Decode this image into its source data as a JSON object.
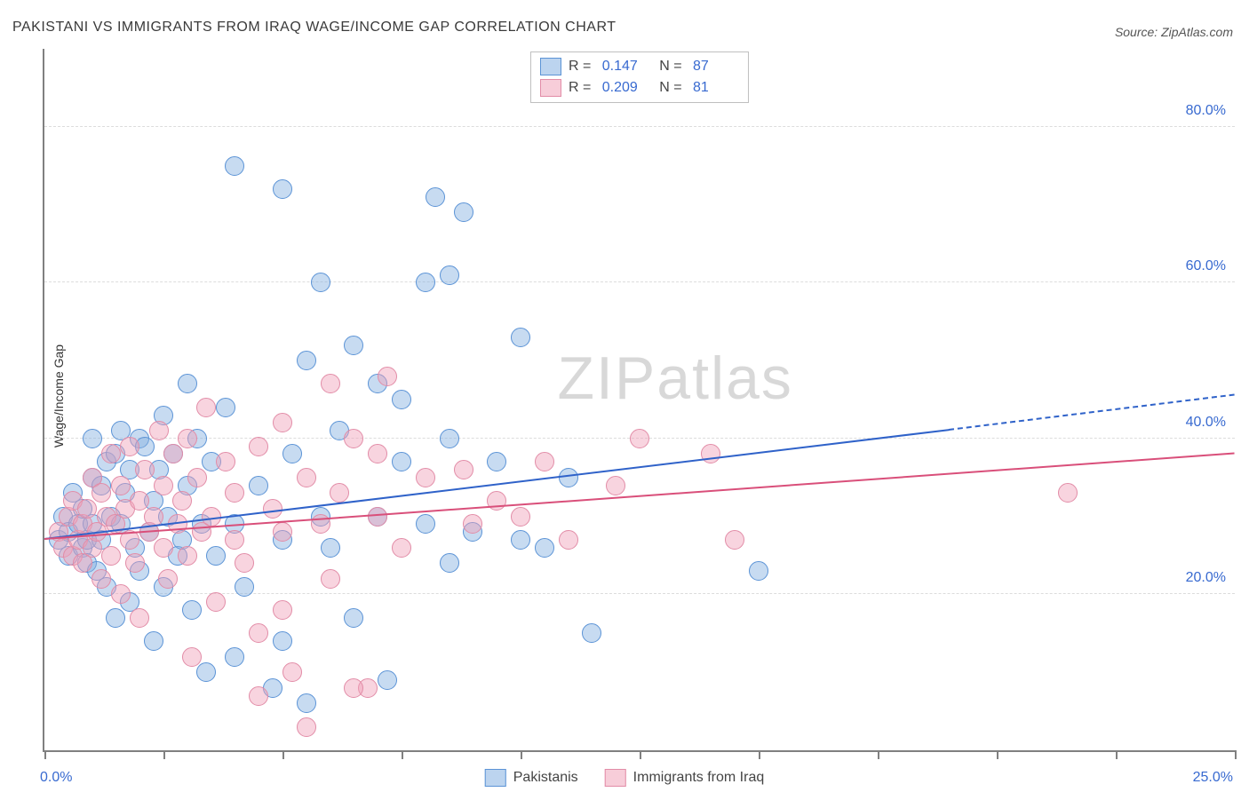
{
  "title": "PAKISTANI VS IMMIGRANTS FROM IRAQ WAGE/INCOME GAP CORRELATION CHART",
  "source": "Source: ZipAtlas.com",
  "ylabel": "Wage/Income Gap",
  "watermark_a": "ZIP",
  "watermark_b": "atlas",
  "chart": {
    "type": "scatter",
    "background_color": "#ffffff",
    "grid_color": "#dcdcdc",
    "axis_color": "#808080",
    "tick_label_color": "#386ad0",
    "xlim": [
      0,
      25
    ],
    "ylim": [
      0,
      90
    ],
    "ytick_values": [
      20,
      40,
      60,
      80
    ],
    "ytick_labels": [
      "20.0%",
      "40.0%",
      "60.0%",
      "80.0%"
    ],
    "xtick_values": [
      0,
      2.5,
      5,
      7.5,
      10,
      12.5,
      15,
      17.5,
      20,
      22.5,
      25
    ],
    "xaxis_left_label": "0.0%",
    "xaxis_right_label": "25.0%",
    "marker_radius": 10,
    "marker_stroke_width": 1.5,
    "series": [
      {
        "name": "Pakistanis",
        "fill_color": "rgba(130, 175, 225, 0.45)",
        "stroke_color": "#5b93d6",
        "swatch_fill": "#bcd4ef",
        "swatch_stroke": "#5b93d6",
        "R": "0.147",
        "N": "87",
        "trend": {
          "x1": 0,
          "y1": 27,
          "x2_solid": 19,
          "y2_solid": 41,
          "x2_dash": 25,
          "y2_dash": 45.5,
          "color": "#2f62c9",
          "width": 2.5
        },
        "points": [
          [
            0.3,
            27
          ],
          [
            0.4,
            30
          ],
          [
            0.5,
            25
          ],
          [
            0.5,
            28
          ],
          [
            0.6,
            33
          ],
          [
            0.7,
            29
          ],
          [
            0.8,
            26
          ],
          [
            0.8,
            31
          ],
          [
            0.9,
            24
          ],
          [
            0.9,
            27
          ],
          [
            1.0,
            35
          ],
          [
            1.0,
            29
          ],
          [
            1.0,
            40
          ],
          [
            1.1,
            23
          ],
          [
            1.2,
            34
          ],
          [
            1.2,
            27
          ],
          [
            1.3,
            37
          ],
          [
            1.3,
            21
          ],
          [
            1.4,
            30
          ],
          [
            1.5,
            38
          ],
          [
            1.5,
            17
          ],
          [
            1.6,
            29
          ],
          [
            1.6,
            41
          ],
          [
            1.7,
            33
          ],
          [
            1.8,
            36
          ],
          [
            1.8,
            19
          ],
          [
            1.9,
            26
          ],
          [
            2.0,
            40
          ],
          [
            2.0,
            23
          ],
          [
            2.1,
            39
          ],
          [
            2.2,
            28
          ],
          [
            2.3,
            32
          ],
          [
            2.3,
            14
          ],
          [
            2.4,
            36
          ],
          [
            2.5,
            43
          ],
          [
            2.5,
            21
          ],
          [
            2.6,
            30
          ],
          [
            2.7,
            38
          ],
          [
            2.8,
            25
          ],
          [
            2.9,
            27
          ],
          [
            3.0,
            34
          ],
          [
            3.0,
            47
          ],
          [
            3.1,
            18
          ],
          [
            3.2,
            40
          ],
          [
            3.3,
            29
          ],
          [
            3.4,
            10
          ],
          [
            3.5,
            37
          ],
          [
            3.6,
            25
          ],
          [
            3.8,
            44
          ],
          [
            4.0,
            29
          ],
          [
            4.0,
            12
          ],
          [
            4.0,
            75
          ],
          [
            4.2,
            21
          ],
          [
            4.5,
            34
          ],
          [
            4.8,
            8
          ],
          [
            5.0,
            27
          ],
          [
            5.0,
            72
          ],
          [
            5.0,
            14
          ],
          [
            5.2,
            38
          ],
          [
            5.5,
            50
          ],
          [
            5.5,
            6
          ],
          [
            5.8,
            30
          ],
          [
            5.8,
            60
          ],
          [
            6.0,
            26
          ],
          [
            6.2,
            41
          ],
          [
            6.5,
            17
          ],
          [
            6.5,
            52
          ],
          [
            7.0,
            30
          ],
          [
            7.2,
            9
          ],
          [
            7.5,
            37
          ],
          [
            7.5,
            45
          ],
          [
            8.0,
            60
          ],
          [
            8.0,
            29
          ],
          [
            8.2,
            71
          ],
          [
            8.5,
            24
          ],
          [
            8.5,
            40
          ],
          [
            8.8,
            69
          ],
          [
            9.0,
            28
          ],
          [
            9.5,
            37
          ],
          [
            10.0,
            53
          ],
          [
            10.0,
            27
          ],
          [
            10.5,
            26
          ],
          [
            11.0,
            35
          ],
          [
            11.5,
            15
          ],
          [
            15.0,
            23
          ],
          [
            7.0,
            47
          ],
          [
            8.5,
            61
          ]
        ]
      },
      {
        "name": "Immigrants from Iraq",
        "fill_color": "rgba(240, 160, 185, 0.45)",
        "stroke_color": "#e28ca7",
        "swatch_fill": "#f7cdd9",
        "swatch_stroke": "#e28ca7",
        "R": "0.209",
        "N": "81",
        "trend": {
          "x1": 0,
          "y1": 27,
          "x2_solid": 25,
          "y2_solid": 38,
          "color": "#d94f7a",
          "width": 2.5
        },
        "points": [
          [
            0.3,
            28
          ],
          [
            0.4,
            26
          ],
          [
            0.5,
            30
          ],
          [
            0.6,
            25
          ],
          [
            0.6,
            32
          ],
          [
            0.7,
            27
          ],
          [
            0.8,
            29
          ],
          [
            0.8,
            24
          ],
          [
            0.9,
            31
          ],
          [
            1.0,
            26
          ],
          [
            1.0,
            35
          ],
          [
            1.1,
            28
          ],
          [
            1.2,
            22
          ],
          [
            1.2,
            33
          ],
          [
            1.3,
            30
          ],
          [
            1.4,
            38
          ],
          [
            1.4,
            25
          ],
          [
            1.5,
            29
          ],
          [
            1.6,
            34
          ],
          [
            1.6,
            20
          ],
          [
            1.7,
            31
          ],
          [
            1.8,
            27
          ],
          [
            1.8,
            39
          ],
          [
            1.9,
            24
          ],
          [
            2.0,
            32
          ],
          [
            2.0,
            17
          ],
          [
            2.1,
            36
          ],
          [
            2.2,
            28
          ],
          [
            2.3,
            30
          ],
          [
            2.4,
            41
          ],
          [
            2.5,
            26
          ],
          [
            2.5,
            34
          ],
          [
            2.6,
            22
          ],
          [
            2.7,
            38
          ],
          [
            2.8,
            29
          ],
          [
            2.9,
            32
          ],
          [
            3.0,
            25
          ],
          [
            3.0,
            40
          ],
          [
            3.1,
            12
          ],
          [
            3.2,
            35
          ],
          [
            3.3,
            28
          ],
          [
            3.4,
            44
          ],
          [
            3.5,
            30
          ],
          [
            3.6,
            19
          ],
          [
            3.8,
            37
          ],
          [
            4.0,
            27
          ],
          [
            4.0,
            33
          ],
          [
            4.2,
            24
          ],
          [
            4.5,
            39
          ],
          [
            4.5,
            15
          ],
          [
            4.8,
            31
          ],
          [
            5.0,
            28
          ],
          [
            5.0,
            42
          ],
          [
            5.2,
            10
          ],
          [
            5.5,
            35
          ],
          [
            5.5,
            3
          ],
          [
            5.8,
            29
          ],
          [
            6.0,
            47
          ],
          [
            6.0,
            22
          ],
          [
            6.2,
            33
          ],
          [
            6.5,
            40
          ],
          [
            6.8,
            8
          ],
          [
            7.0,
            30
          ],
          [
            7.0,
            38
          ],
          [
            7.2,
            48
          ],
          [
            7.5,
            26
          ],
          [
            8.0,
            35
          ],
          [
            8.8,
            36
          ],
          [
            9.0,
            29
          ],
          [
            9.5,
            32
          ],
          [
            10.0,
            30
          ],
          [
            10.5,
            37
          ],
          [
            11.0,
            27
          ],
          [
            12.0,
            34
          ],
          [
            12.5,
            40
          ],
          [
            14.0,
            38
          ],
          [
            14.5,
            27
          ],
          [
            21.5,
            33
          ],
          [
            4.5,
            7
          ],
          [
            6.5,
            8
          ],
          [
            5.0,
            18
          ]
        ]
      }
    ],
    "legend_bottom": [
      {
        "label": "Pakistanis",
        "series_index": 0
      },
      {
        "label": "Immigrants from Iraq",
        "series_index": 1
      }
    ]
  }
}
